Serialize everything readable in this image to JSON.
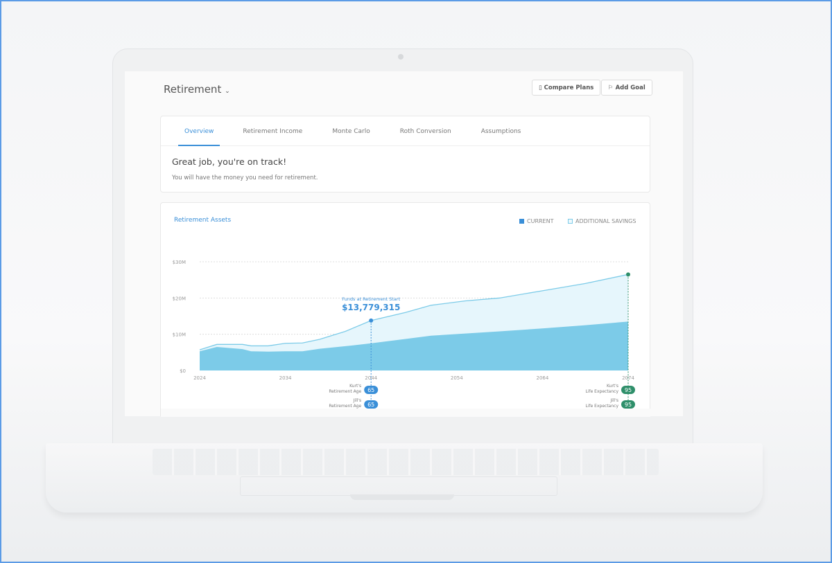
{
  "header": {
    "title": "Retirement",
    "compare_plans": "Compare Plans",
    "add_goal": "Add Goal"
  },
  "tabs": [
    {
      "label": "Overview",
      "active": true
    },
    {
      "label": "Retirement Income"
    },
    {
      "label": "Monte Carlo"
    },
    {
      "label": "Roth Conversion"
    },
    {
      "label": "Assumptions"
    }
  ],
  "status": {
    "heading": "Great job, you're on track!",
    "subtext": "You will have the money you need for retirement."
  },
  "colors": {
    "accent": "#3a8fd8",
    "current": "#7ccbe8",
    "additional": "#e6f6fc",
    "life_expectancy": "#2e8f6a"
  },
  "chart_data": {
    "type": "area",
    "title": "Retirement Assets",
    "legend": [
      {
        "name": "CURRENT"
      },
      {
        "name": "ADDITIONAL SAVINGS"
      }
    ],
    "legend_placement": "top-right",
    "ylim": [
      0,
      30000000
    ],
    "yticks": [
      "$0",
      "$10M",
      "$20M",
      "$30M"
    ],
    "xticks": [
      "2024",
      "2034",
      "2044",
      "2054",
      "2064",
      "2074"
    ],
    "xlim": [
      2024,
      2074
    ],
    "grid": true,
    "x": [
      2024,
      2026,
      2029,
      2030,
      2032,
      2034,
      2036,
      2038,
      2041,
      2044,
      2048,
      2051,
      2055,
      2059,
      2064,
      2069,
      2074
    ],
    "series": [
      {
        "name": "CURRENT",
        "values": [
          5300000,
          6500000,
          5900000,
          5300000,
          5200000,
          5300000,
          5300000,
          6000000,
          6700000,
          7500000,
          8700000,
          9600000,
          10200000,
          10800000,
          11600000,
          12500000,
          13500000
        ]
      },
      {
        "name": "ADDITIONAL SAVINGS",
        "values": [
          5700000,
          7200000,
          7200000,
          6800000,
          6800000,
          7500000,
          7600000,
          8600000,
          10800000,
          13779315,
          16000000,
          18000000,
          19200000,
          20000000,
          22000000,
          24000000,
          26500000
        ]
      }
    ],
    "annotation": {
      "label": "Funds at Retirement Start",
      "value": "$13,779,315",
      "year": 2044
    },
    "markers": [
      {
        "year": 2044,
        "type": "retirement",
        "items": [
          {
            "label": "Kurt's Retirement Age",
            "age": "65"
          },
          {
            "label": "Jill's Retirement Age",
            "age": "65"
          }
        ]
      },
      {
        "year": 2074,
        "type": "life",
        "items": [
          {
            "label": "Kurt's Life Expectancy",
            "age": "95"
          },
          {
            "label": "Jill's Life Expectancy",
            "age": "95"
          }
        ]
      }
    ]
  }
}
